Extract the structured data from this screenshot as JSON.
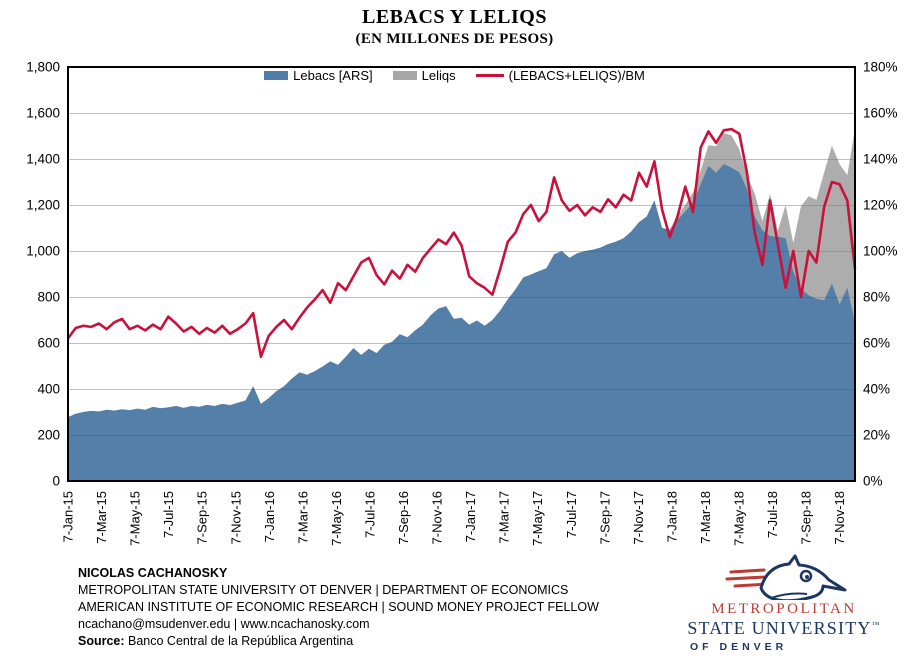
{
  "title": "LEBACS Y LELIQS",
  "subtitle": "(EN MILLONES DE PESOS)",
  "colors": {
    "lebacs": "#4F7CA8",
    "leliqs": "#A6A6A6",
    "ratio": "#C9113C",
    "gridline": "#D9D9D9",
    "logo_navy": "#1C3664",
    "logo_red": "#BE3A34"
  },
  "legend": {
    "items": [
      {
        "label": "Lebacs [ARS]",
        "type": "area",
        "color": "#4F7CA8"
      },
      {
        "label": "Leliqs",
        "type": "area",
        "color": "#A6A6A6"
      },
      {
        "label": "(LEBACS+LELIQS)/BM",
        "type": "line",
        "color": "#C9113C"
      }
    ]
  },
  "chart_data": {
    "type": "area",
    "title": "LEBACS Y LELIQS",
    "subtitle": "(EN MILLONES DE PESOS)",
    "x_start": "7-Jan-2015",
    "x_end": "5-Dec-2018",
    "sampling_interval_days": 14,
    "x_tick_labels": [
      "7-Jan-15",
      "7-Mar-15",
      "7-May-15",
      "7-Jul-15",
      "7-Sep-15",
      "7-Nov-15",
      "7-Jan-16",
      "7-Mar-16",
      "7-May-16",
      "7-Jul-16",
      "7-Sep-16",
      "7-Nov-16",
      "7-Jan-17",
      "7-Mar-17",
      "7-May-17",
      "7-Jul-17",
      "7-Sep-17",
      "7-Nov-17",
      "7-Jan-18",
      "7-Mar-18",
      "7-May-18",
      "7-Jul-18",
      "7-Sep-18",
      "7-Nov-18"
    ],
    "left_axis": {
      "min": 0,
      "max": 1800,
      "step": 200,
      "tick_labels": [
        "0",
        "200",
        "400",
        "600",
        "800",
        "1,000",
        "1,200",
        "1,400",
        "1,600",
        "1,800"
      ]
    },
    "right_axis": {
      "min": 0,
      "max": 180,
      "step": 20,
      "tick_labels": [
        "0%",
        "20%",
        "40%",
        "60%",
        "80%",
        "100%",
        "120%",
        "140%",
        "160%",
        "180%"
      ]
    },
    "series": [
      {
        "name": "Lebacs [ARS]",
        "type": "stacked-area",
        "axis": "left",
        "color": "#4F7CA8",
        "values": [
          278,
          292,
          300,
          305,
          302,
          310,
          306,
          312,
          308,
          315,
          310,
          322,
          316,
          320,
          326,
          318,
          326,
          322,
          331,
          326,
          335,
          330,
          340,
          350,
          412,
          335,
          360,
          390,
          412,
          445,
          472,
          462,
          478,
          498,
          520,
          505,
          540,
          578,
          548,
          575,
          556,
          592,
          605,
          638,
          625,
          655,
          680,
          720,
          750,
          760,
          705,
          710,
          680,
          698,
          675,
          700,
          740,
          790,
          833,
          885,
          898,
          912,
          925,
          985,
          1000,
          970,
          990,
          1000,
          1005,
          1015,
          1030,
          1040,
          1055,
          1085,
          1125,
          1150,
          1220,
          1100,
          1090,
          1135,
          1172,
          1210,
          1290,
          1370,
          1340,
          1378,
          1362,
          1342,
          1270,
          1150,
          1090,
          1064,
          1062,
          1055,
          910,
          835,
          808,
          792,
          786,
          858,
          768,
          840,
          690
        ]
      },
      {
        "name": "Leliqs",
        "type": "stacked-area",
        "axis": "left",
        "color": "#A6A6A6",
        "values": [
          0,
          0,
          0,
          0,
          0,
          0,
          0,
          0,
          0,
          0,
          0,
          0,
          0,
          0,
          0,
          0,
          0,
          0,
          0,
          0,
          0,
          0,
          0,
          0,
          0,
          0,
          0,
          0,
          0,
          0,
          0,
          0,
          0,
          0,
          0,
          0,
          0,
          0,
          0,
          0,
          0,
          0,
          0,
          0,
          0,
          0,
          0,
          0,
          0,
          0,
          0,
          0,
          0,
          0,
          0,
          0,
          0,
          0,
          0,
          0,
          0,
          0,
          0,
          0,
          0,
          0,
          0,
          0,
          0,
          0,
          0,
          0,
          0,
          0,
          0,
          0,
          0,
          0,
          5,
          15,
          30,
          45,
          60,
          90,
          115,
          135,
          140,
          100,
          60,
          100,
          40,
          185,
          25,
          145,
          125,
          360,
          430,
          430,
          555,
          600,
          610,
          490,
          840
        ]
      },
      {
        "name": "(LEBACS+LELIQS)/BM",
        "type": "line",
        "axis": "right",
        "color": "#C9113C",
        "values": [
          62,
          66.5,
          67.5,
          67,
          68.5,
          66,
          69,
          70.5,
          66,
          67.5,
          65.5,
          68,
          66,
          71.5,
          68.5,
          65,
          67,
          64,
          66.5,
          64.5,
          67.5,
          64,
          66,
          68.5,
          73,
          54,
          63,
          67,
          70,
          66,
          71,
          75.5,
          79,
          83,
          77.5,
          86,
          83,
          89,
          95,
          97,
          89.5,
          85.5,
          91.5,
          88,
          94,
          91,
          97,
          101,
          105,
          103,
          108,
          102.5,
          89,
          86,
          84,
          81,
          92,
          104,
          108,
          116,
          120,
          113,
          117,
          132,
          122,
          117.5,
          120,
          115.5,
          119,
          117,
          122.5,
          119,
          124.5,
          122,
          134,
          128,
          139,
          118,
          106,
          115,
          128,
          117,
          145,
          152,
          147,
          152.5,
          153,
          151,
          134,
          108,
          94,
          122,
          103,
          84,
          100,
          80,
          100,
          95,
          119,
          130,
          129,
          122,
          92
        ]
      }
    ],
    "grid": true,
    "legend_position": "top-center-inside"
  },
  "footer": {
    "author": "NICOLAS CACHANOSKY",
    "line1": "METROPOLITAN STATE UNIVERSITY OT DENVER | DEPARTMENT OF ECONOMICS",
    "line2": "AMERICAN INSTITUTE OF ECONOMIC RESEARCH | SOUND MONEY PROJECT FELLOW",
    "contact": "ncachano@msudenver.edu  |  www.ncachanosky.com",
    "source_label": "Source:",
    "source_text": " Banco Central de la República Argentina"
  },
  "logo": {
    "line1": "METROPOLITAN",
    "line2": "STATE UNIVERSITY",
    "tm": "™",
    "line3": "OF DENVER"
  }
}
